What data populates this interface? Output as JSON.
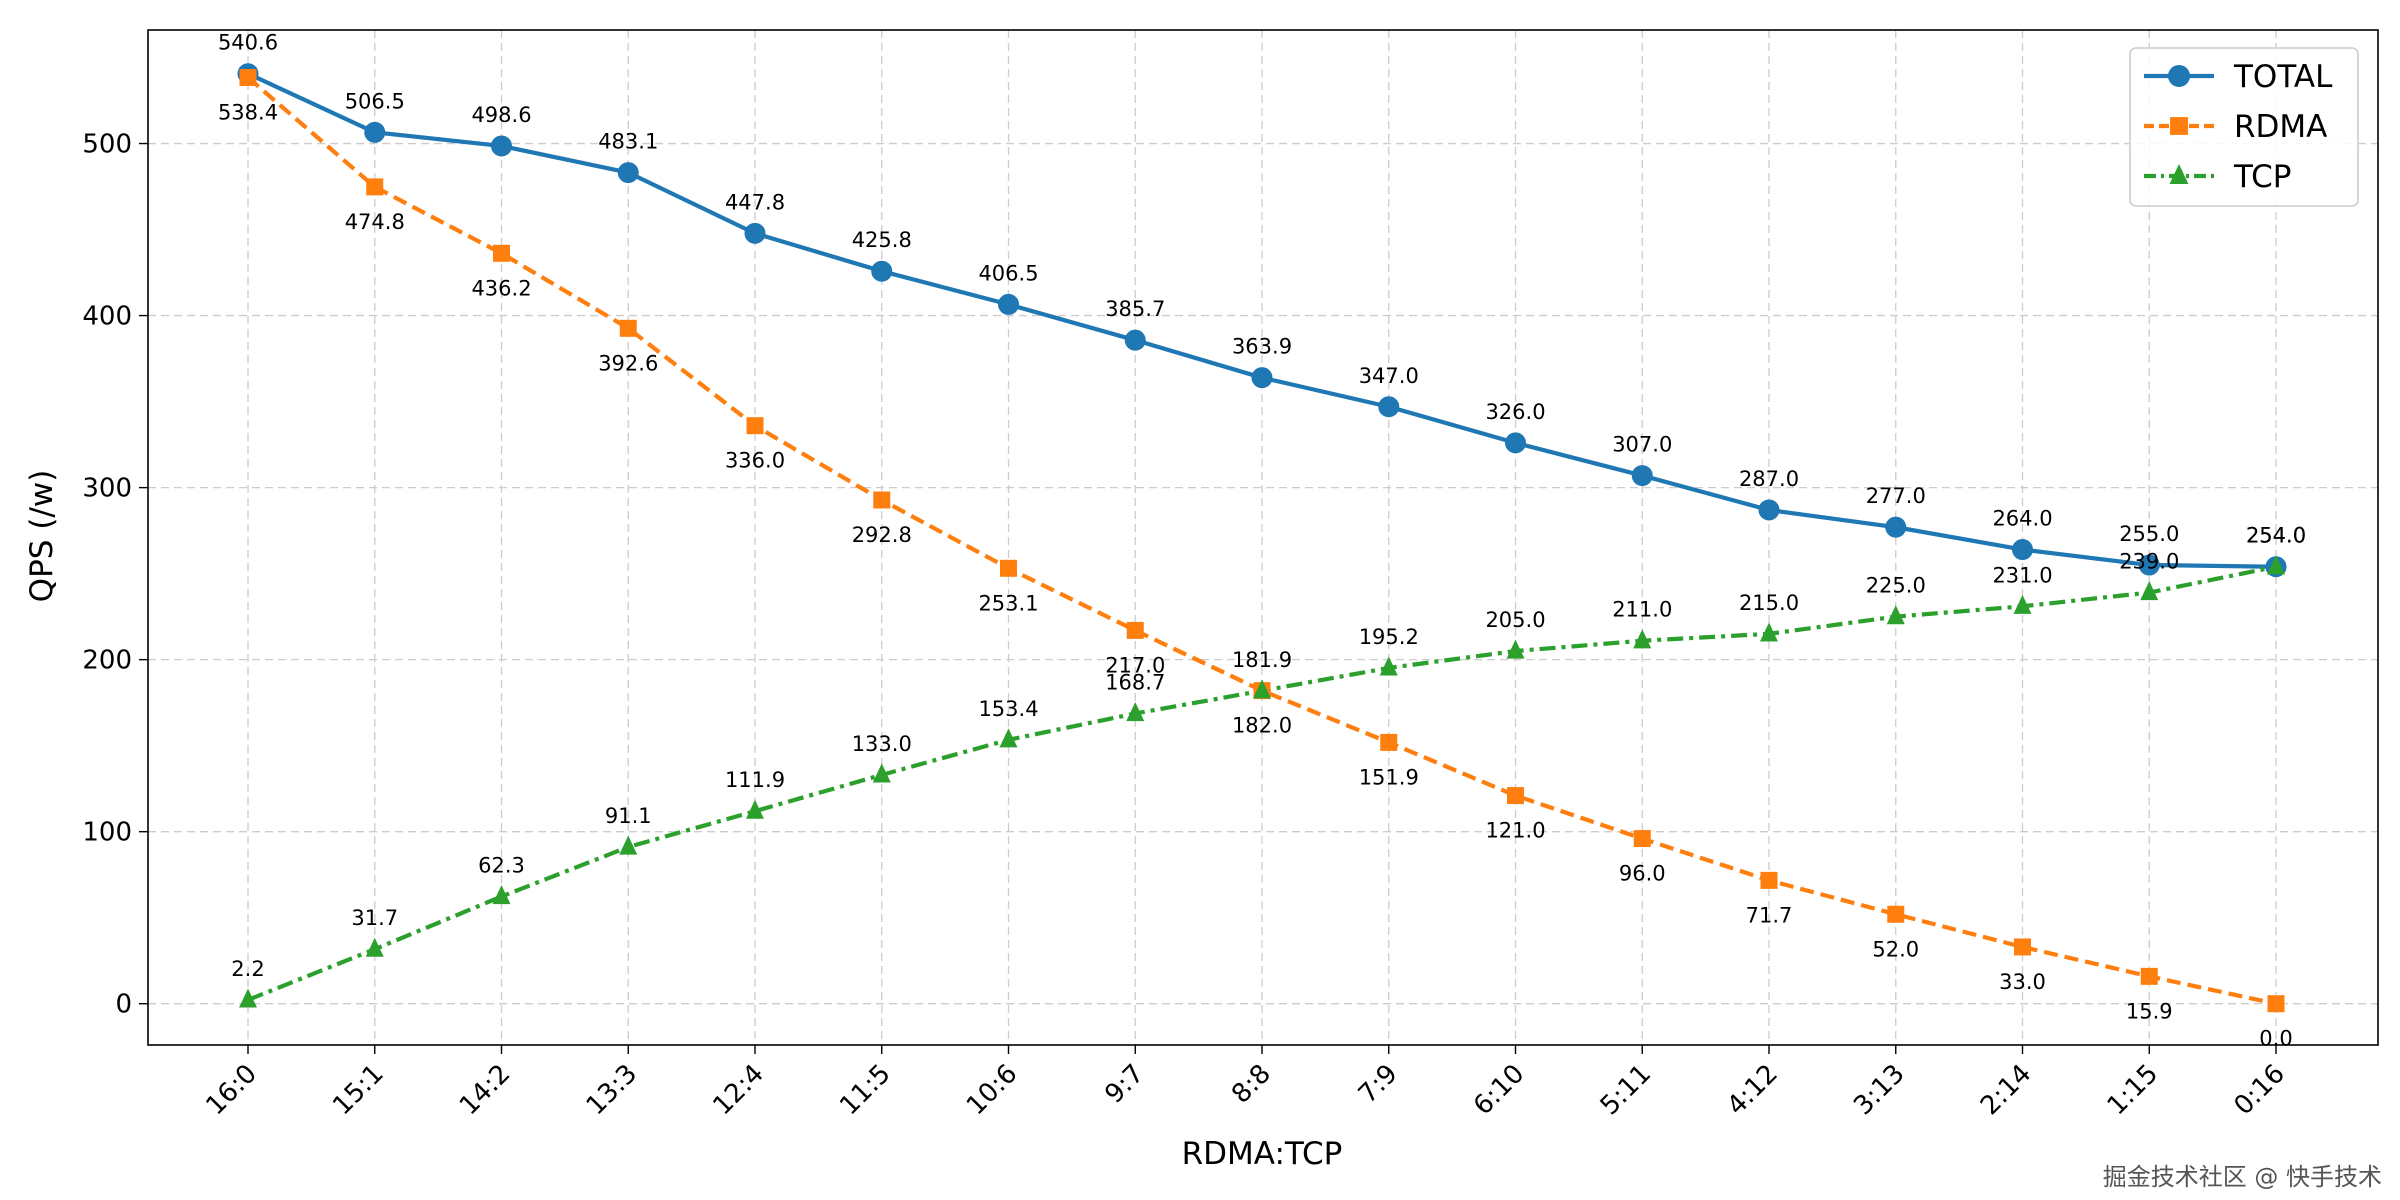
{
  "chart_data": {
    "type": "line",
    "title": "",
    "xlabel": "RDMA:TCP",
    "ylabel": "QPS (/w)",
    "categories": [
      "16:0",
      "15:1",
      "14:2",
      "13:3",
      "12:4",
      "11:5",
      "10:6",
      "9:7",
      "8:8",
      "7:9",
      "6:10",
      "5:11",
      "4:12",
      "3:13",
      "2:14",
      "1:15",
      "0:16"
    ],
    "ylim": [
      -24,
      566
    ],
    "yticks": [
      0,
      100,
      200,
      300,
      400,
      500
    ],
    "grid": true,
    "legend_position": "top-right",
    "series": [
      {
        "name": "TOTAL",
        "color": "#1f77b4",
        "marker": "circle",
        "line_style": "solid",
        "label_position": "above",
        "values": [
          540.6,
          506.5,
          498.6,
          483.1,
          447.8,
          425.8,
          406.5,
          385.7,
          363.9,
          347.0,
          326.0,
          307.0,
          287.0,
          277.0,
          264.0,
          255.0,
          254.0
        ],
        "labels": [
          "540.6",
          "506.5",
          "498.6",
          "483.1",
          "447.8",
          "425.8",
          "406.5",
          "385.7",
          "363.9",
          "347.0",
          "326.0",
          "307.0",
          "287.0",
          "277.0",
          "264.0",
          "255.0",
          "254.0"
        ]
      },
      {
        "name": "RDMA",
        "color": "#ff7f0e",
        "marker": "square",
        "line_style": "dashed",
        "label_position": "below",
        "values": [
          538.4,
          474.8,
          436.2,
          392.6,
          336.0,
          292.8,
          253.1,
          217.0,
          182.0,
          151.9,
          121.0,
          96.0,
          71.7,
          52.0,
          33.0,
          15.9,
          0.0
        ],
        "labels": [
          "538.4",
          "474.8",
          "436.2",
          "392.6",
          "336.0",
          "292.8",
          "253.1",
          "217.0",
          "182.0",
          "151.9",
          "121.0",
          "96.0",
          "71.7",
          "52.0",
          "33.0",
          "15.9",
          "0.0"
        ]
      },
      {
        "name": "TCP",
        "color": "#2ca02c",
        "marker": "triangle",
        "line_style": "dashdot",
        "label_position": "above",
        "values": [
          2.2,
          31.7,
          62.3,
          91.1,
          111.9,
          133.0,
          153.4,
          168.7,
          181.9,
          195.2,
          205.0,
          211.0,
          215.0,
          225.0,
          231.0,
          239.0,
          254.0
        ],
        "labels": [
          "2.2",
          "31.7",
          "62.3",
          "91.1",
          "111.9",
          "133.0",
          "153.4",
          "168.7",
          "181.9",
          "195.2",
          "205.0",
          "211.0",
          "215.0",
          "225.0",
          "231.0",
          "239.0",
          "254.0"
        ]
      }
    ]
  },
  "watermark": "掘金技术社区 @ 快手技术"
}
